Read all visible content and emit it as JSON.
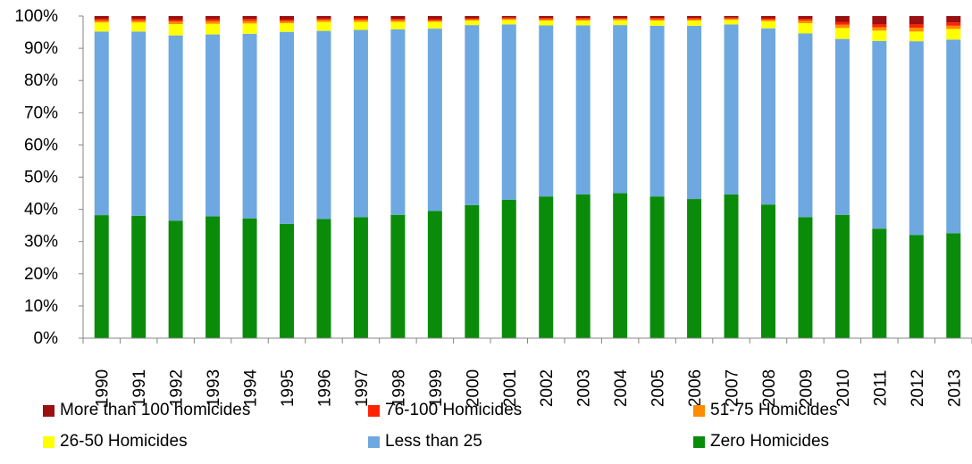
{
  "chart_data": {
    "type": "bar",
    "stacked": true,
    "percent_stacked": true,
    "title": "",
    "xlabel": "",
    "ylabel": "",
    "ylim": [
      0,
      100
    ],
    "y_ticks": [
      "0%",
      "10%",
      "20%",
      "30%",
      "40%",
      "50%",
      "60%",
      "70%",
      "80%",
      "90%",
      "100%"
    ],
    "grid": false,
    "legend_position": "bottom",
    "categories": [
      "1990",
      "1991",
      "1992",
      "1993",
      "1994",
      "1995",
      "1996",
      "1997",
      "1998",
      "1999",
      "2000",
      "2001",
      "2002",
      "2003",
      "2004",
      "2005",
      "2006",
      "2007",
      "2008",
      "2009",
      "2010",
      "2011",
      "2012",
      "2013"
    ],
    "series": [
      {
        "name": "Zero Homicides",
        "color": "#0a8c0a",
        "values": [
          38.2,
          38.0,
          36.5,
          37.8,
          37.2,
          35.5,
          37.0,
          37.6,
          38.3,
          39.5,
          41.3,
          43.0,
          44.0,
          44.6,
          45.0,
          44.0,
          43.2,
          44.6,
          41.5,
          37.6,
          38.3,
          34.0,
          32.0,
          32.6
        ]
      },
      {
        "name": "Less than 25",
        "color": "#6ea8e0",
        "values": [
          57.0,
          57.2,
          57.5,
          56.5,
          57.3,
          59.6,
          58.4,
          58.1,
          57.6,
          56.6,
          55.9,
          54.4,
          53.1,
          52.5,
          52.2,
          53.0,
          53.8,
          52.8,
          54.7,
          57.0,
          54.6,
          58.3,
          60.2,
          60.1
        ]
      },
      {
        "name": "26-50 Homicides",
        "color": "#ffff00",
        "values": [
          2.8,
          2.8,
          3.5,
          3.3,
          3.2,
          2.7,
          2.8,
          2.5,
          2.3,
          2.1,
          1.4,
          1.4,
          1.5,
          1.5,
          1.5,
          1.6,
          1.6,
          1.4,
          2.2,
          3.2,
          3.4,
          3.2,
          3.0,
          3.3
        ]
      },
      {
        "name": "51-75 Homicides",
        "color": "#ff8c00",
        "values": [
          0.6,
          0.6,
          0.8,
          0.8,
          0.8,
          0.6,
          0.6,
          0.6,
          0.5,
          0.4,
          0.4,
          0.4,
          0.4,
          0.4,
          0.4,
          0.4,
          0.4,
          0.4,
          0.5,
          0.8,
          1.0,
          1.0,
          1.2,
          1.0
        ]
      },
      {
        "name": "76-100 Homicides",
        "color": "#ff2200",
        "values": [
          0.5,
          0.5,
          0.6,
          0.6,
          0.6,
          0.5,
          0.4,
          0.5,
          0.4,
          0.4,
          0.3,
          0.3,
          0.4,
          0.4,
          0.3,
          0.4,
          0.4,
          0.3,
          0.4,
          0.5,
          0.9,
          0.9,
          1.0,
          1.0
        ]
      },
      {
        "name": "More than 100 homicides",
        "color": "#9b1010",
        "values": [
          0.9,
          0.9,
          1.1,
          1.0,
          0.9,
          1.1,
          0.8,
          0.7,
          0.9,
          1.0,
          0.7,
          0.5,
          0.6,
          0.6,
          0.6,
          0.6,
          0.6,
          0.5,
          0.7,
          0.9,
          1.8,
          2.6,
          2.6,
          2.0
        ]
      }
    ],
    "legend_order": [
      "More than 100 homicides",
      "76-100 Homicides",
      "51-75 Homicides",
      "26-50 Homicides",
      "Less than 25",
      "Zero Homicides"
    ]
  },
  "colors": {
    "axis": "#868686",
    "text": "#000000"
  }
}
